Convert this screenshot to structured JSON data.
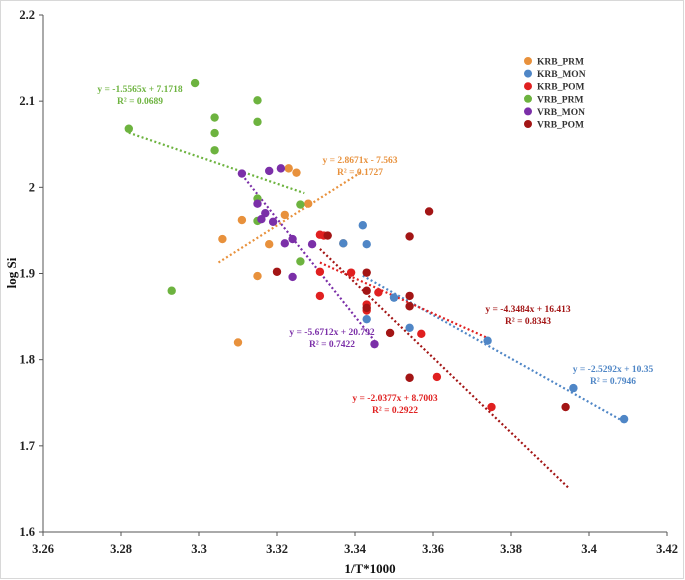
{
  "chart_data": {
    "type": "scatter",
    "title": "",
    "xlabel": "1/T*1000",
    "ylabel": "log Si",
    "xlim": [
      3.26,
      3.42
    ],
    "ylim": [
      1.6,
      2.2
    ],
    "xticks": [
      "3.26",
      "3.28",
      "3.3",
      "3.32",
      "3.34",
      "3.36",
      "3.38",
      "3.4",
      "3.42"
    ],
    "yticks": [
      "1.6",
      "1.7",
      "1.8",
      "1.9",
      "2",
      "2.1",
      "2.2"
    ],
    "grid": false,
    "legend_position": "top-right",
    "series": [
      {
        "name": "KRB_PRM",
        "color": "#E8913C",
        "points": [
          [
            3.31,
            1.82
          ],
          [
            3.306,
            1.94
          ],
          [
            3.311,
            1.962
          ],
          [
            3.315,
            1.897
          ],
          [
            3.318,
            1.934
          ],
          [
            3.322,
            1.968
          ],
          [
            3.323,
            2.022
          ],
          [
            3.325,
            2.017
          ],
          [
            3.328,
            1.981
          ],
          [
            3.337,
            1.935
          ]
        ],
        "trendline": {
          "equation": "y = 2.8671x - 7.563",
          "r2": "R² = 0.1727",
          "x_range": [
            3.305,
            3.342
          ]
        }
      },
      {
        "name": "KRB_MON",
        "color": "#4F86C6",
        "points": [
          [
            3.337,
            1.935
          ],
          [
            3.342,
            1.956
          ],
          [
            3.343,
            1.934
          ],
          [
            3.343,
            1.847
          ],
          [
            3.35,
            1.872
          ],
          [
            3.354,
            1.837
          ],
          [
            3.374,
            1.822
          ],
          [
            3.396,
            1.767
          ],
          [
            3.409,
            1.731
          ]
        ],
        "trendline": {
          "equation": "y = -2.5292x + 10.35",
          "r2": "R² = 0.7946",
          "x_range": [
            3.342,
            3.409
          ]
        }
      },
      {
        "name": "KRB_POM",
        "color": "#E02020",
        "points": [
          [
            3.331,
            1.945
          ],
          [
            3.332,
            1.944
          ],
          [
            3.331,
            1.902
          ],
          [
            3.331,
            1.874
          ],
          [
            3.339,
            1.901
          ],
          [
            3.343,
            1.864
          ],
          [
            3.343,
            1.857
          ],
          [
            3.346,
            1.878
          ],
          [
            3.357,
            1.83
          ],
          [
            3.361,
            1.78
          ],
          [
            3.375,
            1.745
          ]
        ],
        "trendline": {
          "equation": "y = -2.0377x + 8.7003",
          "r2": "R² = 0.2922",
          "x_range": [
            3.331,
            3.375
          ]
        }
      },
      {
        "name": "VRB_PRM",
        "color": "#6DB33F",
        "points": [
          [
            3.282,
            2.068
          ],
          [
            3.299,
            2.121
          ],
          [
            3.304,
            2.081
          ],
          [
            3.304,
            2.063
          ],
          [
            3.304,
            2.043
          ],
          [
            3.315,
            2.101
          ],
          [
            3.315,
            2.076
          ],
          [
            3.315,
            1.987
          ],
          [
            3.315,
            1.961
          ],
          [
            3.326,
            1.98
          ],
          [
            3.326,
            1.914
          ],
          [
            3.293,
            1.88
          ]
        ],
        "trendline": {
          "equation": "y = -1.5565x + 7.1718",
          "r2": "R² = 0.0689",
          "x_range": [
            3.282,
            3.327
          ]
        }
      },
      {
        "name": "VRB_MON",
        "color": "#7B2FA8",
        "points": [
          [
            3.311,
            2.016
          ],
          [
            3.315,
            1.981
          ],
          [
            3.316,
            1.963
          ],
          [
            3.317,
            1.97
          ],
          [
            3.318,
            2.019
          ],
          [
            3.319,
            1.96
          ],
          [
            3.321,
            2.022
          ],
          [
            3.322,
            1.935
          ],
          [
            3.324,
            1.94
          ],
          [
            3.324,
            1.896
          ],
          [
            3.329,
            1.934
          ],
          [
            3.345,
            1.818
          ]
        ],
        "trendline": {
          "equation": "y = -5.6712x + 20.792",
          "r2": "R² = 0.7422",
          "x_range": [
            3.311,
            3.345
          ]
        }
      },
      {
        "name": "VRB_POM",
        "color": "#A31515",
        "points": [
          [
            3.32,
            1.902
          ],
          [
            3.333,
            1.944
          ],
          [
            3.343,
            1.901
          ],
          [
            3.343,
            1.88
          ],
          [
            3.343,
            1.86
          ],
          [
            3.349,
            1.831
          ],
          [
            3.354,
            1.943
          ],
          [
            3.354,
            1.874
          ],
          [
            3.354,
            1.862
          ],
          [
            3.354,
            1.779
          ],
          [
            3.359,
            1.972
          ],
          [
            3.394,
            1.745
          ]
        ],
        "trendline": {
          "equation": "y = -4.3484x + 16.413",
          "r2": "R² = 0.8343",
          "x_range": [
            3.331,
            3.395
          ]
        }
      }
    ]
  }
}
